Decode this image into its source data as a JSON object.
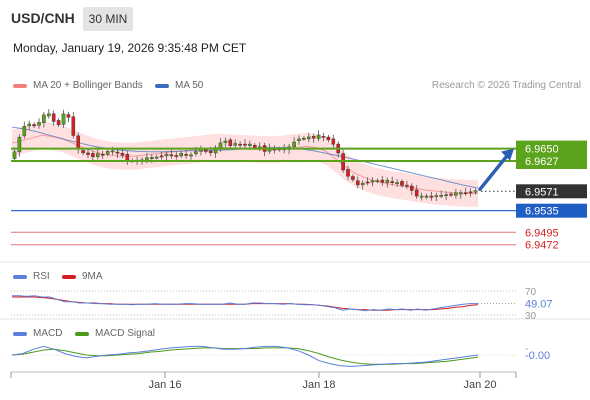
{
  "header": {
    "symbol": "USD/CNH",
    "timeframe": "30 MIN",
    "datetime": "Monday, January 19, 2026 9:35:48 PM CET"
  },
  "credit": "Research © 2026 Trading Central",
  "colors": {
    "ma20": "#f08080",
    "ma50": "#3a6dbf",
    "bands": "#ffd6d6",
    "resistance": "#5aa31b",
    "support": "#1f5fc4",
    "support_red": "#e57373",
    "current": "#333333",
    "rsi": "#5b7fdc",
    "rsi_ma": "#d62020",
    "macd": "#5b7fdc",
    "macd_signal": "#4c9a1a"
  },
  "chart_data": [
    {
      "type": "line",
      "panel": "price",
      "legend": [
        "MA 20 + Bollinger Bands",
        "MA 50"
      ],
      "x_ticks": [
        "Jan 16",
        "Jan 18",
        "Jan 20"
      ],
      "ylim": [
        6.944,
        6.974
      ],
      "price_path": [
        6.9632,
        6.9645,
        6.968,
        6.97,
        6.969,
        6.9695,
        6.971,
        6.9715,
        6.97,
        6.9695,
        6.972,
        6.97,
        6.965,
        6.9642,
        6.964,
        6.9636,
        6.964,
        6.9638,
        6.965,
        6.964,
        6.9642,
        6.963,
        6.9626,
        6.9628,
        6.963,
        6.9632,
        6.9634,
        6.9636,
        6.964,
        6.9636,
        6.9638,
        6.964,
        6.9636,
        6.964,
        6.965,
        6.9646,
        6.9642,
        6.9648,
        6.966,
        6.9665,
        6.9655,
        6.966,
        6.9655,
        6.966,
        6.965,
        6.9655,
        6.9646,
        6.965,
        6.9648,
        6.965,
        6.9648,
        6.966,
        6.967,
        6.9668,
        6.9672,
        6.967,
        6.9675,
        6.9668,
        6.9665,
        6.965,
        6.9612,
        6.96,
        6.959,
        6.958,
        6.959,
        6.9588,
        6.9592,
        6.9588,
        6.959,
        6.9586,
        6.9588,
        6.9582,
        6.958,
        6.9565,
        6.956,
        6.9562,
        6.956,
        6.9565,
        6.9562,
        6.9566,
        6.9565,
        6.9568,
        6.9568,
        6.957,
        6.9571
      ],
      "ma20_path": [
        6.966,
        6.9665,
        6.967,
        6.9675,
        6.9672,
        6.9668,
        6.966,
        6.9652,
        6.9645,
        6.964,
        6.9637,
        6.9636,
        6.9636,
        6.9638,
        6.964,
        6.9642,
        6.9644,
        6.9646,
        6.9648,
        6.965,
        6.9652,
        6.9652,
        6.9651,
        6.965,
        6.9649,
        6.9648,
        6.9648,
        6.965,
        6.9652,
        6.9654,
        6.9652,
        6.9645,
        6.963,
        6.9615,
        6.9603,
        6.9595,
        6.9589,
        6.9585,
        6.9582,
        6.9579,
        6.9576,
        6.9573,
        6.9571,
        6.9569,
        6.9568,
        6.9567,
        6.9567
      ],
      "ma50_path": [
        6.969,
        6.9686,
        6.968,
        6.9673,
        6.9666,
        6.966,
        6.9654,
        6.965,
        6.9647,
        6.9645,
        6.9644,
        6.9644,
        6.9645,
        6.9646,
        6.9646,
        6.9647,
        6.9648,
        6.965,
        6.9651,
        6.9652,
        6.9652,
        6.965,
        6.9646,
        6.9641,
        6.9636,
        6.963,
        6.9624,
        6.9618,
        6.9612,
        6.9606,
        6.96,
        6.9594,
        6.9588,
        6.9582,
        6.9577
      ],
      "band_width": 0.0025,
      "levels": [
        {
          "value": "6.9650",
          "role": "resistance"
        },
        {
          "value": "6.9627",
          "role": "resistance"
        },
        {
          "value": "6.9571",
          "role": "current"
        },
        {
          "value": "6.9535",
          "role": "support"
        },
        {
          "value": "6.9495",
          "role": "support_red"
        },
        {
          "value": "6.9472",
          "role": "support_red"
        }
      ],
      "arrow": {
        "from": 6.9571,
        "to": 6.965,
        "direction": "up"
      }
    },
    {
      "type": "line",
      "panel": "rsi",
      "legend": [
        "RSI",
        "9MA"
      ],
      "ylim": [
        25,
        80
      ],
      "levels": [
        "70",
        "30"
      ],
      "value_label": "49.07",
      "rsi": [
        62,
        62,
        61,
        62,
        60,
        60,
        56,
        52,
        52,
        50,
        50,
        49,
        49,
        48,
        48,
        48,
        47,
        48,
        48,
        49,
        48,
        48,
        48,
        49,
        49,
        48,
        48,
        48,
        48,
        50,
        48,
        48,
        50,
        50,
        49,
        49,
        48,
        49,
        48,
        47,
        47,
        46,
        44,
        42,
        38,
        40,
        39,
        37,
        39,
        38,
        40,
        39,
        40,
        38,
        40,
        38,
        40,
        42,
        44,
        46,
        48,
        49,
        49.07
      ],
      "rsi_ma": [
        60,
        60,
        60,
        60,
        59,
        58,
        56,
        54,
        52,
        51,
        50,
        50,
        49,
        49,
        48,
        48,
        48,
        48,
        48,
        48,
        48,
        48,
        48,
        48,
        48,
        48,
        48,
        48,
        48,
        48,
        48,
        48,
        49,
        49,
        49,
        49,
        49,
        49,
        48,
        48,
        47,
        46,
        45,
        43,
        41,
        40,
        39,
        39,
        38,
        38,
        38,
        39,
        39,
        39,
        39,
        39,
        39,
        40,
        41,
        43,
        44,
        46,
        47
      ]
    },
    {
      "type": "line",
      "panel": "macd",
      "legend": [
        "MACD",
        "MACD Signal"
      ],
      "ylim": [
        -0.0021,
        0.0021
      ],
      "value_label": "-0.00",
      "zero_label": "-",
      "macd": [
        0.0,
        0.0002,
        0.0008,
        0.0012,
        0.0008,
        0.0002,
        -0.0002,
        -0.0004,
        -0.0002,
        0.0,
        0.0001,
        0.0003,
        0.0004,
        0.0006,
        0.0008,
        0.001,
        0.0011,
        0.0012,
        0.0012,
        0.001,
        0.0008,
        0.0008,
        0.0009,
        0.0011,
        0.0012,
        0.0012,
        0.001,
        0.0006,
        0.0,
        -0.0008,
        -0.0012,
        -0.0015,
        -0.0016,
        -0.0015,
        -0.0014,
        -0.0013,
        -0.0012,
        -0.0012,
        -0.0011,
        -0.001,
        -0.0008,
        -0.0006,
        -0.0004,
        -0.0002,
        0.0
      ],
      "macd_signal": [
        0.0,
        0.0001,
        0.0004,
        0.0007,
        0.0008,
        0.0006,
        0.0003,
        0.0,
        -0.0001,
        -0.0001,
        0.0,
        0.0001,
        0.0002,
        0.0004,
        0.0005,
        0.0007,
        0.0008,
        0.0009,
        0.001,
        0.001,
        0.0009,
        0.0009,
        0.0009,
        0.0009,
        0.001,
        0.001,
        0.001,
        0.0009,
        0.0006,
        0.0002,
        -0.0003,
        -0.0007,
        -0.001,
        -0.0012,
        -0.0013,
        -0.0013,
        -0.0013,
        -0.0012,
        -0.0012,
        -0.0011,
        -0.001,
        -0.0009,
        -0.0007,
        -0.0005,
        -0.0003
      ]
    }
  ]
}
